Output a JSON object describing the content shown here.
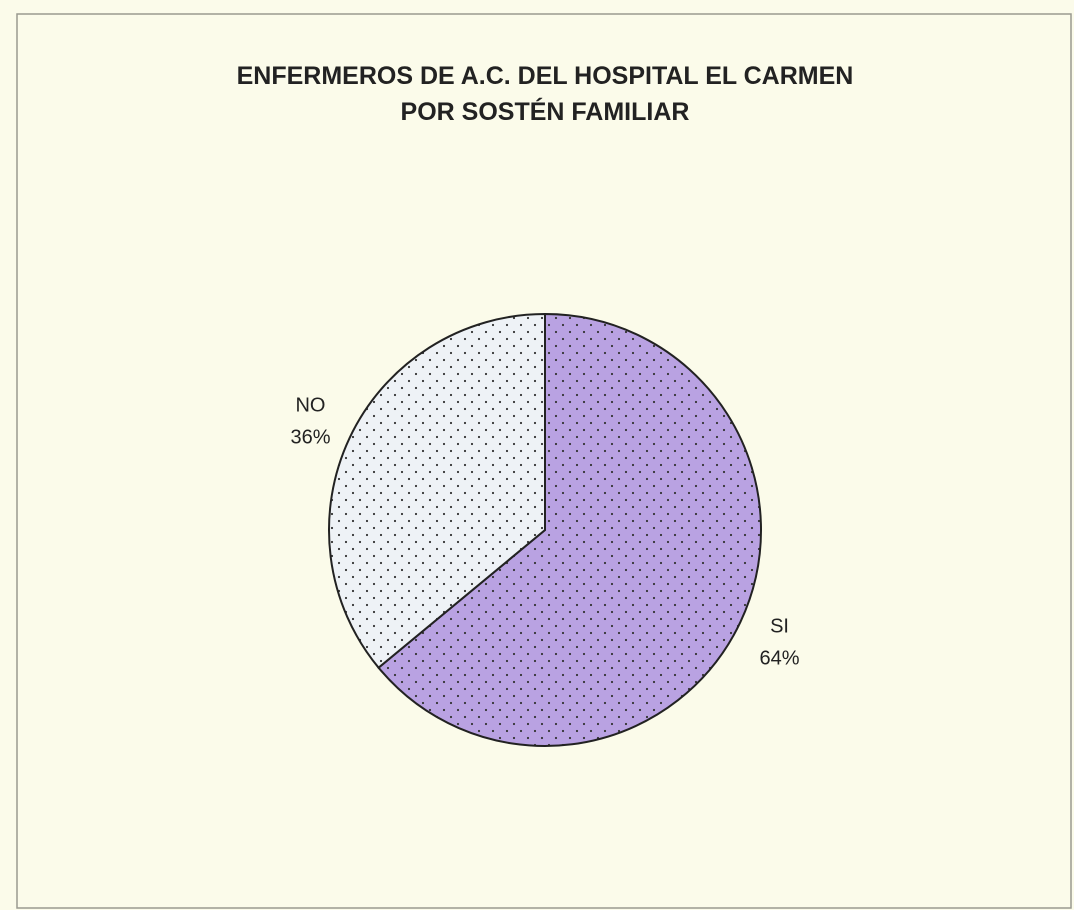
{
  "chart_data": {
    "type": "pie",
    "title": [
      "ENFERMEROS DE A.C. DEL HOSPITAL EL CARMEN",
      "POR SOSTÉN FAMILIAR"
    ],
    "categories": [
      "SI",
      "NO"
    ],
    "values": [
      64,
      36
    ],
    "value_labels": [
      "64%",
      "36%"
    ],
    "colors": [
      "#b9a2e2",
      "#eef2f6"
    ]
  }
}
